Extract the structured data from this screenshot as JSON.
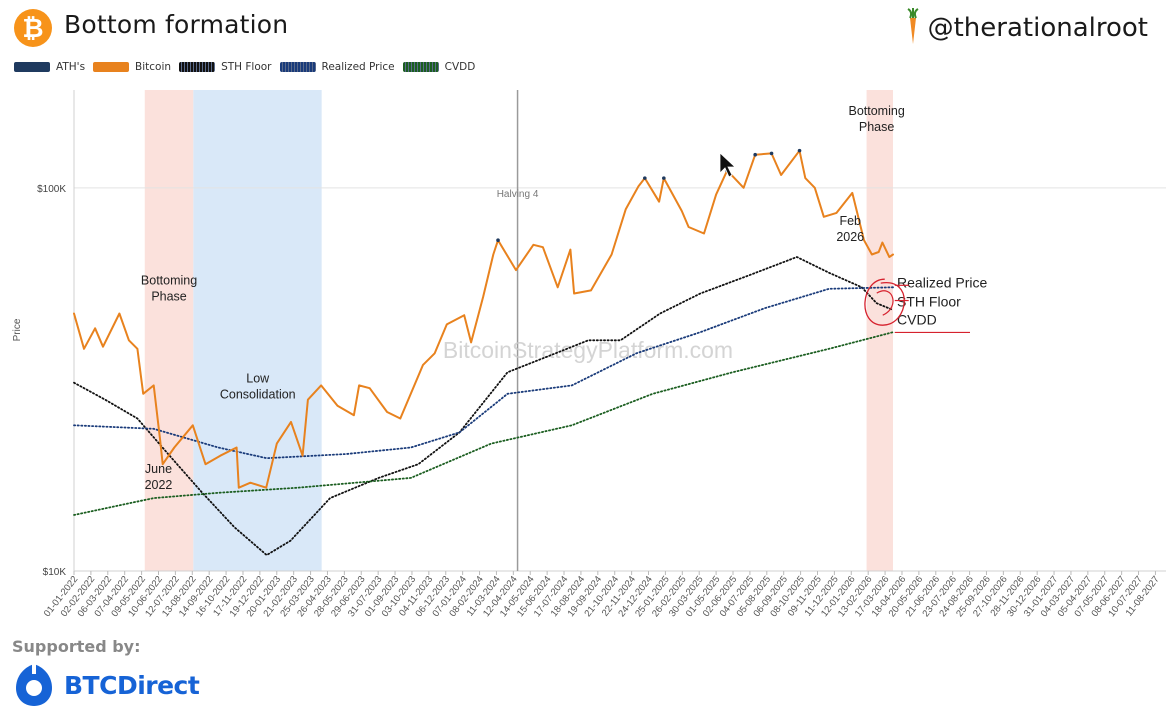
{
  "header": {
    "title": "Bottom formation",
    "brand_handle": "@therationalroot",
    "btc_icon": "bitcoin-icon",
    "brand_icon": "carrot-icon"
  },
  "legend": [
    {
      "label": "ATH's",
      "color": "#1f3a5f",
      "pattern": "solid"
    },
    {
      "label": "Bitcoin",
      "color": "#e8821e",
      "pattern": "solid"
    },
    {
      "label": "STH Floor",
      "color": "#111111",
      "pattern": "dotted"
    },
    {
      "label": "Realized Price",
      "color": "#1a3b7a",
      "pattern": "dotted"
    },
    {
      "label": "CVDD",
      "color": "#1b5e20",
      "pattern": "dotted"
    }
  ],
  "footer": {
    "supported_by": "Supported by:",
    "sponsor": "BTCDirect",
    "sponsor_icon": "btcdirect-icon"
  },
  "chart_data": {
    "type": "line",
    "title": "Bottom formation",
    "ylabel": "Price",
    "yscale": "log",
    "ylim": [
      10000,
      180000
    ],
    "y_ticks": [
      {
        "value": 10000,
        "label": "$10K"
      },
      {
        "value": 100000,
        "label": "$100K"
      }
    ],
    "xlim": [
      "2022-01-01",
      "2027-08-31"
    ],
    "x_tick_labels": [
      "01-01-2022",
      "02-02-2022",
      "06-03-2022",
      "07-04-2022",
      "09-05-2022",
      "10-06-2022",
      "12-07-2022",
      "13-08-2022",
      "14-09-2022",
      "16-10-2022",
      "17-11-2022",
      "19-12-2022",
      "20-01-2023",
      "21-02-2023",
      "25-03-2023",
      "26-04-2023",
      "28-05-2023",
      "29-06-2023",
      "31-07-2023",
      "01-09-2023",
      "03-10-2023",
      "04-11-2023",
      "06-12-2023",
      "07-01-2024",
      "08-02-2024",
      "11-03-2024",
      "12-04-2024",
      "14-05-2024",
      "15-06-2024",
      "17-07-2024",
      "18-08-2024",
      "19-09-2024",
      "21-10-2024",
      "22-11-2024",
      "24-12-2024",
      "25-01-2025",
      "26-02-2025",
      "30-03-2025",
      "01-05-2025",
      "02-06-2025",
      "04-07-2025",
      "05-08-2025",
      "06-09-2025",
      "08-10-2025",
      "09-11-2025",
      "11-12-2025",
      "12-01-2026",
      "13-02-2026",
      "17-03-2026",
      "18-04-2026",
      "20-05-2026",
      "21-06-2026",
      "23-07-2026",
      "24-08-2026",
      "25-09-2026",
      "27-10-2026",
      "28-11-2026",
      "30-12-2026",
      "31-01-2027",
      "04-03-2027",
      "05-04-2027",
      "07-05-2027",
      "08-06-2027",
      "10-07-2027",
      "11-08-2027"
    ],
    "watermark": "BitcoinStrategyPlatform.com",
    "series": [
      {
        "name": "Bitcoin",
        "color": "#e8821e",
        "style": "solid",
        "points": [
          [
            "2022-01-01",
            47000
          ],
          [
            "2022-01-20",
            38000
          ],
          [
            "2022-02-10",
            43000
          ],
          [
            "2022-02-25",
            38500
          ],
          [
            "2022-03-28",
            47000
          ],
          [
            "2022-04-15",
            40000
          ],
          [
            "2022-05-01",
            38000
          ],
          [
            "2022-05-12",
            29000
          ],
          [
            "2022-06-01",
            30500
          ],
          [
            "2022-06-13",
            22000
          ],
          [
            "2022-06-18",
            19000
          ],
          [
            "2022-07-10",
            21000
          ],
          [
            "2022-08-14",
            24000
          ],
          [
            "2022-09-07",
            19000
          ],
          [
            "2022-10-05",
            20000
          ],
          [
            "2022-11-05",
            21000
          ],
          [
            "2022-11-09",
            16500
          ],
          [
            "2022-12-01",
            17000
          ],
          [
            "2022-12-31",
            16500
          ],
          [
            "2023-01-20",
            21500
          ],
          [
            "2023-02-16",
            24500
          ],
          [
            "2023-03-10",
            20000
          ],
          [
            "2023-03-20",
            28000
          ],
          [
            "2023-04-14",
            30500
          ],
          [
            "2023-05-15",
            27000
          ],
          [
            "2023-06-15",
            25500
          ],
          [
            "2023-06-25",
            30500
          ],
          [
            "2023-07-15",
            30000
          ],
          [
            "2023-08-17",
            26000
          ],
          [
            "2023-09-11",
            25000
          ],
          [
            "2023-10-24",
            34500
          ],
          [
            "2023-11-15",
            37000
          ],
          [
            "2023-12-08",
            44000
          ],
          [
            "2024-01-10",
            46500
          ],
          [
            "2024-01-23",
            39500
          ],
          [
            "2024-02-15",
            52000
          ],
          [
            "2024-03-05",
            67000
          ],
          [
            "2024-03-14",
            73000
          ],
          [
            "2024-04-17",
            61000
          ],
          [
            "2024-05-20",
            71000
          ],
          [
            "2024-06-07",
            70000
          ],
          [
            "2024-07-05",
            55000
          ],
          [
            "2024-07-29",
            69000
          ],
          [
            "2024-08-05",
            53000
          ],
          [
            "2024-09-06",
            54000
          ],
          [
            "2024-10-15",
            67000
          ],
          [
            "2024-11-11",
            88000
          ],
          [
            "2024-12-05",
            101000
          ],
          [
            "2024-12-17",
            106000
          ],
          [
            "2025-01-13",
            92000
          ],
          [
            "2025-01-22",
            106000
          ],
          [
            "2025-02-25",
            87000
          ],
          [
            "2025-03-10",
            79000
          ],
          [
            "2025-04-08",
            76000
          ],
          [
            "2025-05-01",
            96000
          ],
          [
            "2025-05-22",
            111000
          ],
          [
            "2025-06-22",
            100000
          ],
          [
            "2025-07-14",
            122000
          ],
          [
            "2025-08-14",
            123000
          ],
          [
            "2025-09-01",
            108000
          ],
          [
            "2025-10-06",
            125000
          ],
          [
            "2025-10-17",
            106000
          ],
          [
            "2025-11-04",
            100000
          ],
          [
            "2025-11-21",
            84000
          ],
          [
            "2025-12-15",
            86000
          ],
          [
            "2026-01-14",
            97000
          ],
          [
            "2026-02-05",
            73000
          ],
          [
            "2026-02-20",
            67000
          ],
          [
            "2026-03-05",
            68000
          ],
          [
            "2026-03-12",
            72000
          ],
          [
            "2026-03-25",
            66000
          ],
          [
            "2026-04-01",
            67000
          ]
        ]
      },
      {
        "name": "STH Floor",
        "color": "#111111",
        "style": "dotted",
        "points": [
          [
            "2022-01-01",
            31000
          ],
          [
            "2022-03-01",
            28000
          ],
          [
            "2022-05-01",
            25000
          ],
          [
            "2022-07-01",
            20000
          ],
          [
            "2022-09-01",
            16000
          ],
          [
            "2022-11-01",
            13000
          ],
          [
            "2023-01-01",
            11000
          ],
          [
            "2023-02-15",
            12000
          ],
          [
            "2023-05-01",
            15500
          ],
          [
            "2023-08-01",
            17500
          ],
          [
            "2023-10-15",
            19000
          ],
          [
            "2024-01-01",
            23000
          ],
          [
            "2024-04-01",
            33000
          ],
          [
            "2024-07-01",
            37000
          ],
          [
            "2024-09-01",
            40000
          ],
          [
            "2024-11-01",
            40000
          ],
          [
            "2025-01-15",
            47000
          ],
          [
            "2025-04-01",
            53000
          ],
          [
            "2025-07-01",
            59000
          ],
          [
            "2025-10-01",
            66000
          ],
          [
            "2025-12-01",
            60000
          ],
          [
            "2026-02-01",
            55000
          ],
          [
            "2026-03-01",
            50000
          ],
          [
            "2026-04-01",
            48000
          ]
        ]
      },
      {
        "name": "Realized Price",
        "color": "#1a3b7a",
        "style": "dotted",
        "points": [
          [
            "2022-01-01",
            24000
          ],
          [
            "2022-06-01",
            23500
          ],
          [
            "2022-10-01",
            21000
          ],
          [
            "2023-01-01",
            19700
          ],
          [
            "2023-06-01",
            20200
          ],
          [
            "2023-10-01",
            21000
          ],
          [
            "2024-01-01",
            23000
          ],
          [
            "2024-04-01",
            29000
          ],
          [
            "2024-08-01",
            30500
          ],
          [
            "2024-12-01",
            37000
          ],
          [
            "2025-04-01",
            42000
          ],
          [
            "2025-08-01",
            48500
          ],
          [
            "2025-12-01",
            54500
          ],
          [
            "2026-04-01",
            55000
          ]
        ]
      },
      {
        "name": "CVDD",
        "color": "#1b5e20",
        "style": "dotted",
        "points": [
          [
            "2022-01-01",
            14000
          ],
          [
            "2022-06-01",
            15500
          ],
          [
            "2022-10-01",
            16000
          ],
          [
            "2023-03-01",
            16500
          ],
          [
            "2023-10-01",
            17500
          ],
          [
            "2024-03-01",
            21500
          ],
          [
            "2024-08-01",
            24000
          ],
          [
            "2025-01-01",
            29000
          ],
          [
            "2025-06-01",
            33000
          ],
          [
            "2025-12-01",
            38000
          ],
          [
            "2026-04-01",
            42000
          ]
        ]
      }
    ],
    "bands": [
      {
        "name": "Bottoming Phase 2022",
        "from": "2022-05-15",
        "to": "2022-08-15",
        "color": "#fbe1dc"
      },
      {
        "name": "Low Consolidation",
        "from": "2022-08-15",
        "to": "2023-04-15",
        "color": "#d9e8f8"
      },
      {
        "name": "Bottoming Phase 2026",
        "from": "2026-02-10",
        "to": "2026-04-01",
        "color": "#fbe1dc"
      }
    ],
    "events": [
      {
        "label": "Halving 4",
        "date": "2024-04-20"
      }
    ],
    "ath_markers": [
      [
        "2024-03-14",
        73000
      ],
      [
        "2024-12-17",
        106000
      ],
      [
        "2025-01-22",
        106000
      ],
      [
        "2025-05-22",
        111000
      ],
      [
        "2025-07-14",
        122000
      ],
      [
        "2025-08-14",
        123000
      ],
      [
        "2025-10-06",
        125000
      ]
    ],
    "annotations": [
      {
        "text": "Bottoming\nPhase",
        "date": "2022-06-30",
        "value": 56000
      },
      {
        "text": "Low\nConsolidation",
        "date": "2022-12-15",
        "value": 31000
      },
      {
        "text": "June\n2022",
        "date": "2022-06-10",
        "value": 18000
      },
      {
        "text": "Bottoming\nPhase",
        "date": "2026-03-01",
        "value": 155000
      },
      {
        "text": "Feb\n2026",
        "date": "2026-01-10",
        "value": 80000
      },
      {
        "text": "Realized Price",
        "date": "2026-04-20",
        "value": 55000
      },
      {
        "text": "STH Floor",
        "date": "2026-04-20",
        "value": 49000
      },
      {
        "text": "CVDD",
        "date": "2026-04-20",
        "value": 44000
      }
    ]
  }
}
